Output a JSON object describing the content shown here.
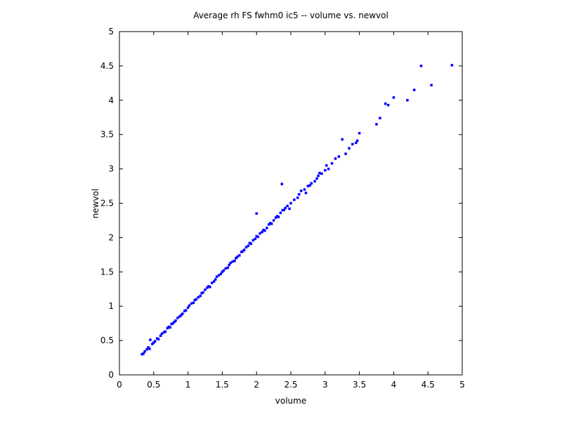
{
  "chart_data": {
    "type": "scatter",
    "title": "Average rh FS fwhm0 ic5 -- volume vs. newvol",
    "x_label": "volume",
    "y_label": "newvol",
    "series": [
      {
        "name": "newvol",
        "color": "#0000ff",
        "x": [
          0.33,
          0.35,
          0.37,
          0.4,
          0.42,
          0.44,
          0.45,
          0.48,
          0.5,
          0.52,
          0.55,
          0.57,
          0.6,
          0.62,
          0.65,
          0.67,
          0.7,
          0.72,
          0.74,
          0.76,
          0.78,
          0.8,
          0.82,
          0.85,
          0.88,
          0.9,
          0.92,
          0.95,
          0.97,
          1.0,
          1.02,
          1.05,
          1.08,
          1.1,
          1.12,
          1.15,
          1.18,
          1.2,
          1.22,
          1.25,
          1.28,
          1.3,
          1.32,
          1.35,
          1.38,
          1.4,
          1.42,
          1.45,
          1.48,
          1.5,
          1.52,
          1.55,
          1.58,
          1.6,
          1.62,
          1.65,
          1.68,
          1.7,
          1.72,
          1.75,
          1.78,
          1.8,
          1.82,
          1.85,
          1.88,
          1.9,
          1.92,
          1.95,
          1.98,
          2.0,
          2.0,
          2.02,
          2.05,
          2.08,
          2.1,
          2.12,
          2.15,
          2.18,
          2.2,
          2.22,
          2.25,
          2.28,
          2.3,
          2.32,
          2.35,
          2.37,
          2.38,
          2.4,
          2.42,
          2.45,
          2.48,
          2.5,
          2.55,
          2.6,
          2.62,
          2.65,
          2.7,
          2.72,
          2.75,
          2.78,
          2.8,
          2.85,
          2.88,
          2.9,
          2.92,
          2.95,
          3.0,
          3.02,
          3.05,
          3.1,
          3.15,
          3.2,
          3.25,
          3.3,
          3.35,
          3.4,
          3.45,
          3.47,
          3.5,
          3.75,
          3.8,
          3.88,
          3.92,
          4.0,
          4.2,
          4.3,
          4.4,
          4.55,
          4.85
        ],
        "values": [
          0.3,
          0.31,
          0.34,
          0.37,
          0.4,
          0.38,
          0.51,
          0.45,
          0.47,
          0.49,
          0.53,
          0.52,
          0.57,
          0.6,
          0.62,
          0.63,
          0.68,
          0.7,
          0.69,
          0.74,
          0.75,
          0.77,
          0.79,
          0.83,
          0.85,
          0.87,
          0.89,
          0.93,
          0.94,
          0.98,
          1.01,
          1.04,
          1.05,
          1.09,
          1.1,
          1.13,
          1.15,
          1.19,
          1.2,
          1.24,
          1.27,
          1.29,
          1.28,
          1.34,
          1.36,
          1.39,
          1.43,
          1.45,
          1.47,
          1.5,
          1.52,
          1.55,
          1.56,
          1.6,
          1.63,
          1.65,
          1.66,
          1.7,
          1.72,
          1.74,
          1.79,
          1.8,
          1.82,
          1.86,
          1.88,
          1.92,
          1.91,
          1.96,
          1.98,
          2.02,
          2.35,
          2.01,
          2.06,
          2.08,
          2.11,
          2.1,
          2.14,
          2.19,
          2.21,
          2.2,
          2.25,
          2.29,
          2.31,
          2.3,
          2.36,
          2.78,
          2.4,
          2.4,
          2.43,
          2.46,
          2.42,
          2.5,
          2.55,
          2.58,
          2.63,
          2.68,
          2.7,
          2.65,
          2.75,
          2.76,
          2.79,
          2.82,
          2.86,
          2.9,
          2.94,
          2.93,
          2.98,
          3.05,
          3.0,
          3.08,
          3.15,
          3.18,
          3.43,
          3.22,
          3.3,
          3.36,
          3.38,
          3.41,
          3.52,
          3.65,
          3.74,
          3.95,
          3.93,
          4.04,
          4.0,
          4.15,
          4.5,
          4.22,
          4.51
        ]
      }
    ],
    "xlim": [
      0,
      5
    ],
    "ylim": [
      0,
      5
    ],
    "xticks": [
      0,
      0.5,
      1,
      1.5,
      2,
      2.5,
      3,
      3.5,
      4,
      4.5,
      5
    ],
    "yticks": [
      0,
      0.5,
      1,
      1.5,
      2,
      2.5,
      3,
      3.5,
      4,
      4.5,
      5
    ],
    "grid": false
  }
}
